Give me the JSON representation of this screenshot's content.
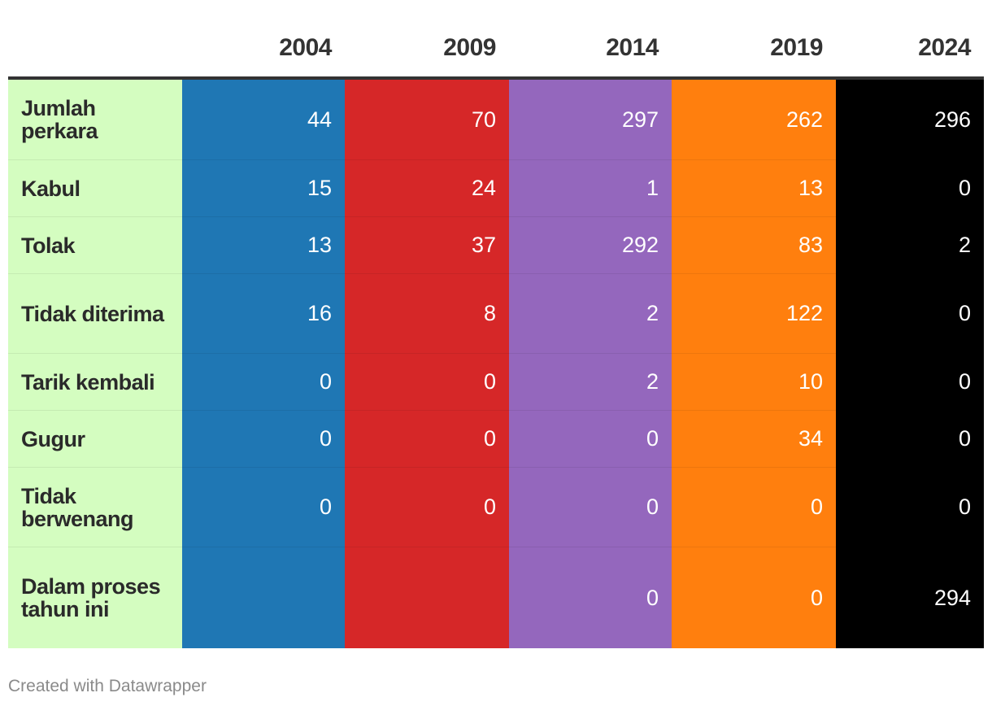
{
  "chart_data": {
    "type": "table",
    "title": "",
    "columns": [
      "",
      "2004",
      "2009",
      "2014",
      "2019",
      "2024"
    ],
    "column_colors": [
      "#d4fdc0",
      "#1f77b4",
      "#d62728",
      "#9467bd",
      "#ff7f0e",
      "#000000"
    ],
    "rows": [
      {
        "label": "Jumlah perkara",
        "values": [
          "44",
          "70",
          "297",
          "262",
          "296"
        ]
      },
      {
        "label": "Kabul",
        "values": [
          "15",
          "24",
          "1",
          "13",
          "0"
        ]
      },
      {
        "label": "Tolak",
        "values": [
          "13",
          "37",
          "292",
          "83",
          "2"
        ]
      },
      {
        "label": "Tidak diterima",
        "values": [
          "16",
          "8",
          "2",
          "122",
          "0"
        ]
      },
      {
        "label": "Tarik kembali",
        "values": [
          "0",
          "0",
          "2",
          "10",
          "0"
        ]
      },
      {
        "label": "Gugur",
        "values": [
          "0",
          "0",
          "0",
          "34",
          "0"
        ]
      },
      {
        "label": "Tidak berwenang",
        "values": [
          "0",
          "0",
          "0",
          "0",
          "0"
        ]
      },
      {
        "label": "Dalam proses tahun ini",
        "values": [
          "",
          "",
          "0",
          "0",
          "294"
        ]
      }
    ]
  },
  "footer": {
    "credit": "Created with Datawrapper"
  }
}
